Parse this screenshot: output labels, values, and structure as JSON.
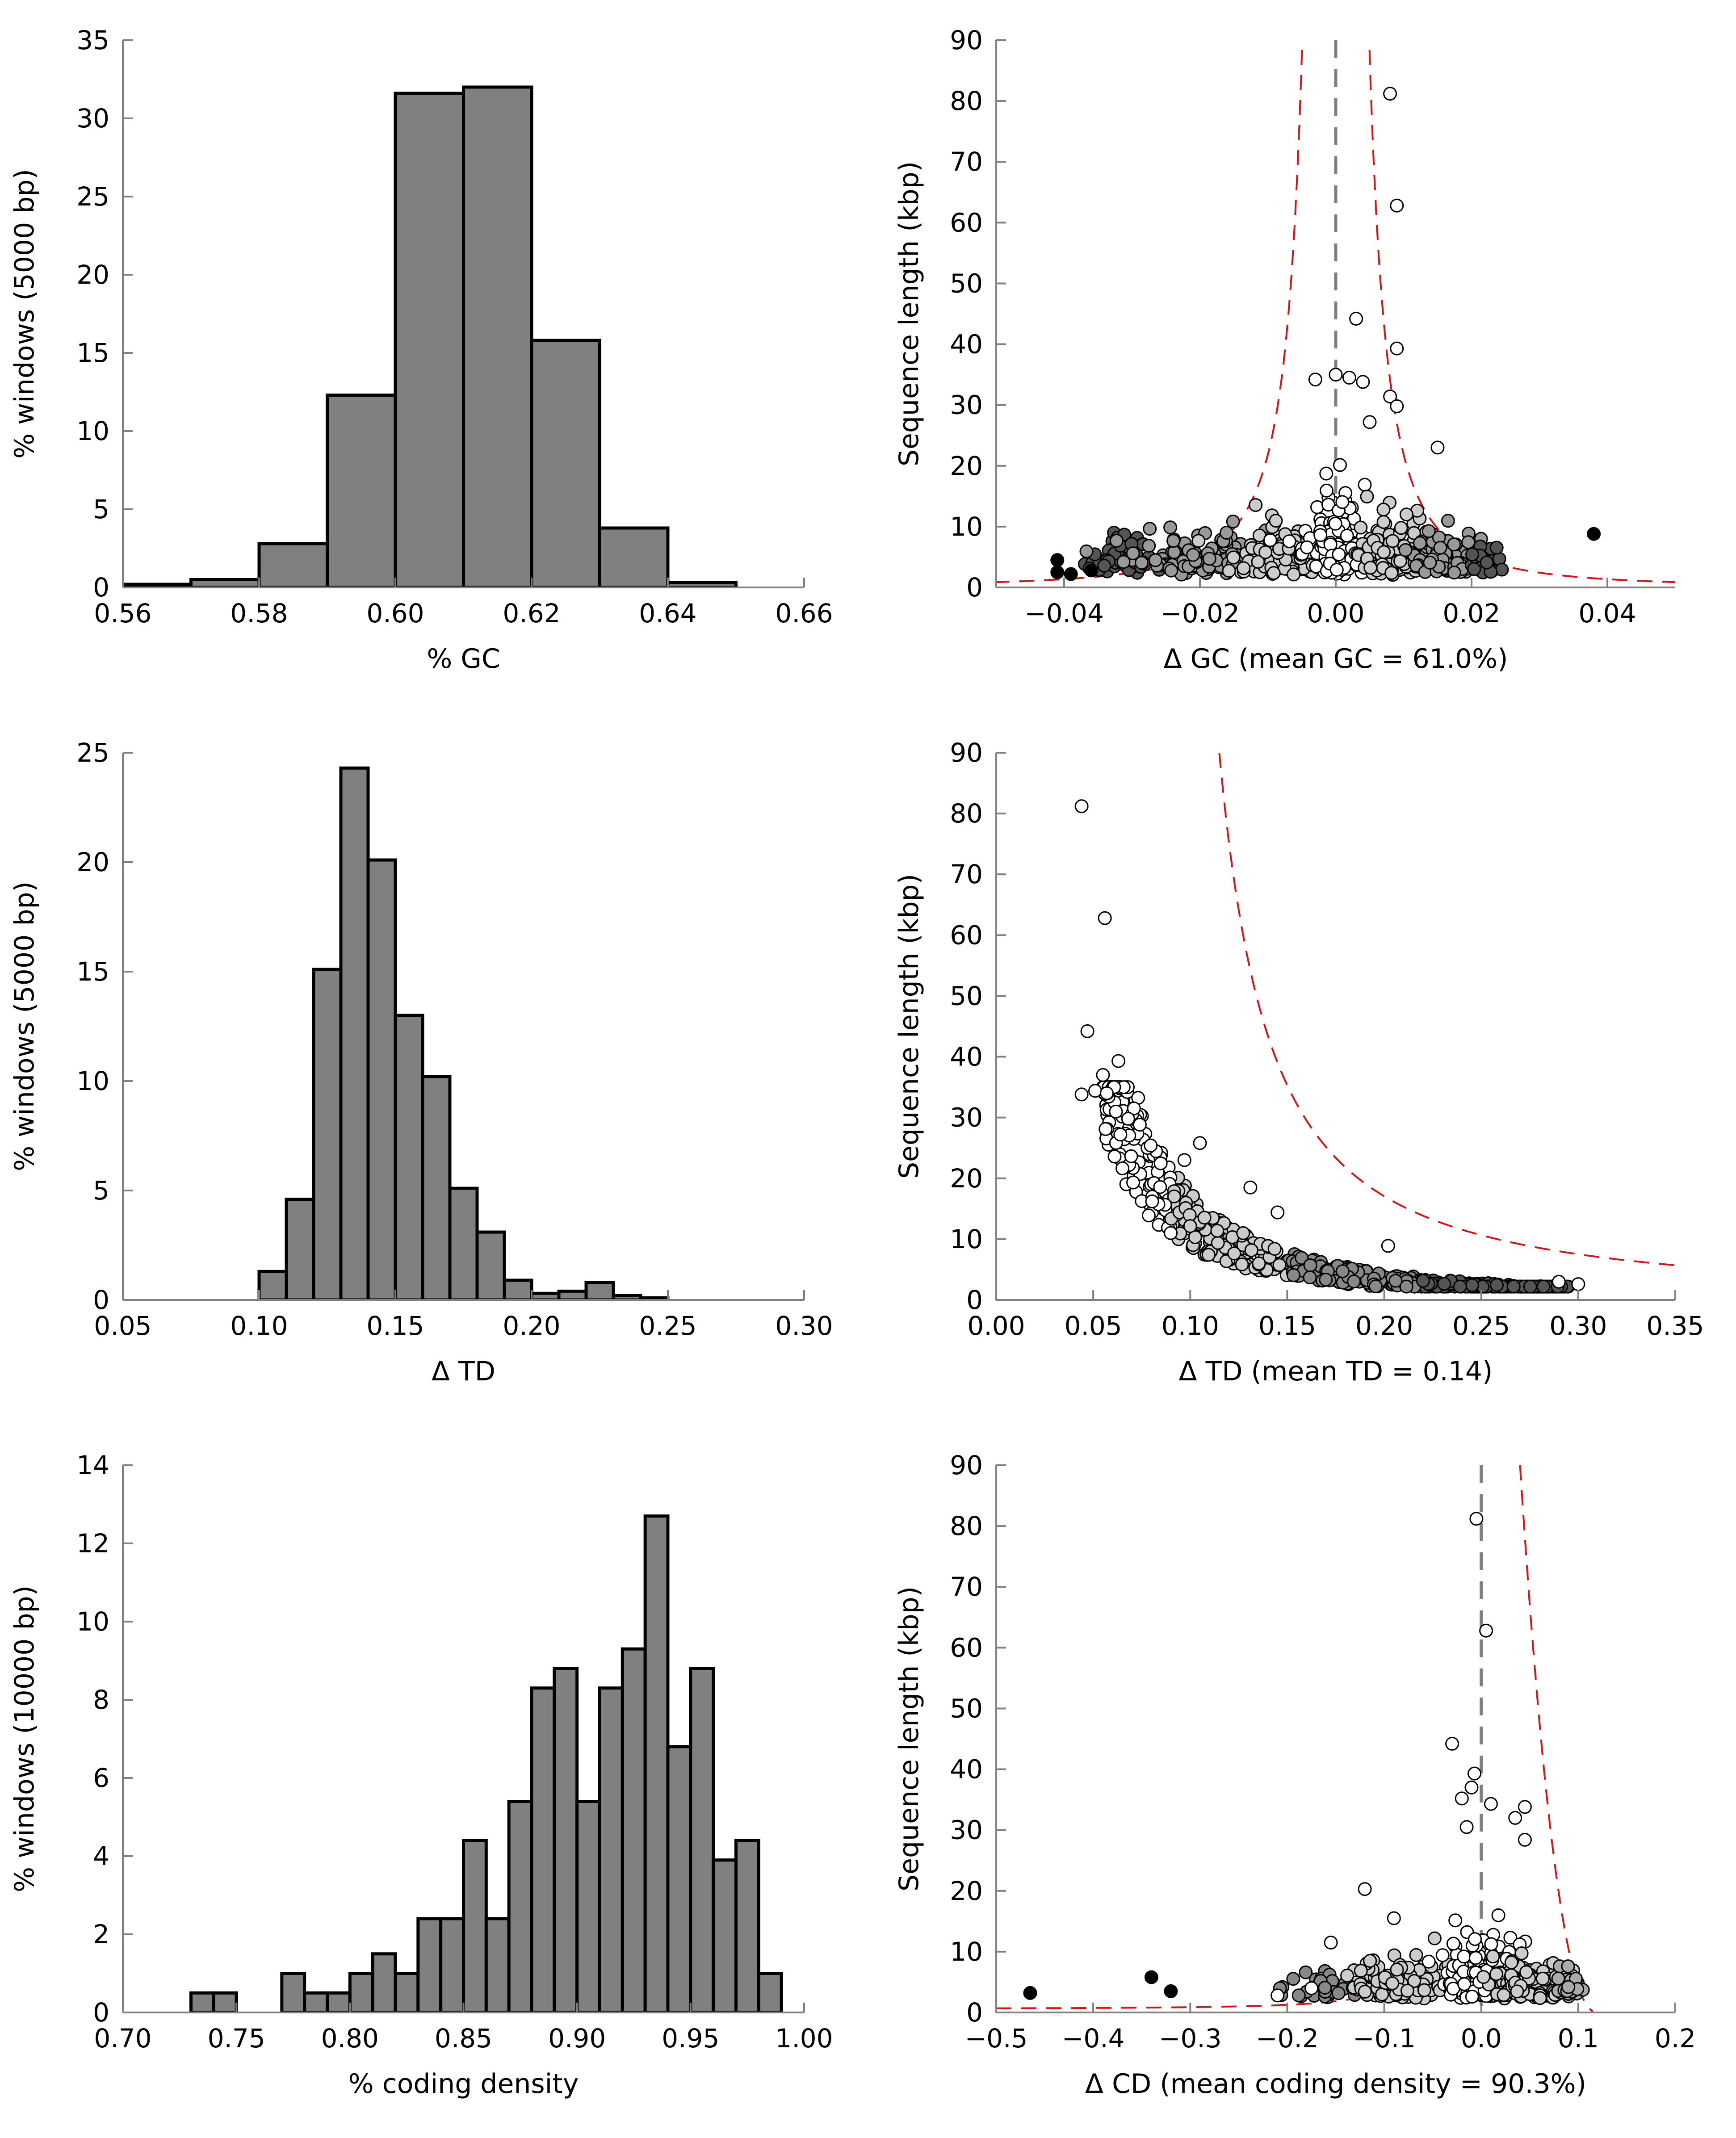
{
  "chart_data": [
    {
      "id": "gc-hist",
      "type": "bar",
      "xlabel": "% GC",
      "ylabel": "% windows (5000 bp)",
      "xlim": [
        0.56,
        0.66
      ],
      "ylim": [
        0,
        35
      ],
      "xticks": [
        "0.56",
        "0.58",
        "0.60",
        "0.62",
        "0.64",
        "0.66"
      ],
      "yticks": [
        "0",
        "5",
        "10",
        "15",
        "20",
        "25",
        "30",
        "35"
      ],
      "bin_edges": [
        0.56,
        0.57,
        0.58,
        0.59,
        0.6,
        0.61,
        0.62,
        0.63,
        0.64,
        0.65
      ],
      "values": [
        0.2,
        0.5,
        2.8,
        12.3,
        31.6,
        32.0,
        15.8,
        3.8,
        0.3
      ],
      "bar_color": "#808080"
    },
    {
      "id": "gc-scatter",
      "type": "scatter",
      "xlabel": "Δ GC (mean GC = 61.0%)",
      "ylabel": "Sequence length (kbp)",
      "xlim": [
        -0.05,
        0.05
      ],
      "ylim": [
        0,
        90
      ],
      "xticks": [
        "−0.04",
        "−0.02",
        "0.00",
        "0.02",
        "0.04"
      ],
      "yticks": [
        "0",
        "10",
        "20",
        "30",
        "40",
        "50",
        "60",
        "70",
        "80",
        "90"
      ],
      "center_line_x": 0.0,
      "outlier_points": [
        {
          "x": -0.041,
          "y": 4.5
        },
        {
          "x": -0.041,
          "y": 2.5
        },
        {
          "x": -0.039,
          "y": 2.2
        },
        {
          "x": -0.036,
          "y": 2.8
        },
        {
          "x": 0.038,
          "y": 8.8
        }
      ],
      "labeled_points": [
        {
          "x": 0.008,
          "y": 81.2
        },
        {
          "x": 0.009,
          "y": 62.8
        },
        {
          "x": 0.003,
          "y": 44.2
        },
        {
          "x": 0.009,
          "y": 39.3
        },
        {
          "x": 0.0,
          "y": 35.0
        },
        {
          "x": -0.003,
          "y": 34.2
        },
        {
          "x": 0.002,
          "y": 34.5
        },
        {
          "x": 0.004,
          "y": 33.8
        },
        {
          "x": 0.008,
          "y": 31.4
        },
        {
          "x": 0.009,
          "y": 29.8
        },
        {
          "x": 0.005,
          "y": 27.2
        },
        {
          "x": 0.015,
          "y": 23.0
        }
      ],
      "density_bands": [
        {
          "x": -0.032,
          "y": 5.0,
          "spread": 0.004,
          "ymax": 9.0,
          "n": 60,
          "color": "#555555"
        },
        {
          "x": -0.02,
          "y": 5.0,
          "spread": 0.008,
          "ymax": 13.0,
          "n": 130,
          "color": "#999999"
        },
        {
          "x": -0.008,
          "y": 6.0,
          "spread": 0.006,
          "ymax": 18.0,
          "n": 130,
          "color": "#cccccc"
        },
        {
          "x": 0.0,
          "y": 8.0,
          "spread": 0.004,
          "ymax": 25.0,
          "n": 150,
          "color": "#ffffff"
        },
        {
          "x": 0.008,
          "y": 6.0,
          "spread": 0.005,
          "ymax": 20.0,
          "n": 140,
          "color": "#cccccc"
        },
        {
          "x": 0.017,
          "y": 5.0,
          "spread": 0.005,
          "ymax": 12.0,
          "n": 110,
          "color": "#999999"
        },
        {
          "x": 0.022,
          "y": 4.0,
          "spread": 0.002,
          "ymax": 7.0,
          "n": 30,
          "color": "#555555"
        }
      ],
      "threshold_curves": {
        "type": "gc",
        "k": 0.000336,
        "x_range": [
          -0.05,
          0.05
        ],
        "color": "#dd1111"
      }
    },
    {
      "id": "td-hist",
      "type": "bar",
      "xlabel": "Δ TD",
      "ylabel": "% windows (5000 bp)",
      "xlim": [
        0.05,
        0.3
      ],
      "ylim": [
        0,
        25
      ],
      "xticks": [
        "0.05",
        "0.10",
        "0.15",
        "0.20",
        "0.25",
        "0.30"
      ],
      "yticks": [
        "0",
        "5",
        "10",
        "15",
        "20",
        "25"
      ],
      "bin_edges": [
        0.1,
        0.11,
        0.12,
        0.13,
        0.14,
        0.15,
        0.16,
        0.17,
        0.18,
        0.19,
        0.2,
        0.21,
        0.22,
        0.23,
        0.24,
        0.25
      ],
      "values": [
        1.3,
        4.6,
        15.1,
        24.3,
        20.1,
        13.0,
        10.2,
        5.1,
        3.1,
        0.9,
        0.3,
        0.4,
        0.8,
        0.2,
        0.1
      ],
      "bar_color": "#808080"
    },
    {
      "id": "td-scatter",
      "type": "scatter",
      "xlabel": "Δ TD (mean TD = 0.14)",
      "ylabel": "Sequence length (kbp)",
      "xlim": [
        0.0,
        0.35
      ],
      "ylim": [
        0,
        90
      ],
      "xticks": [
        "0.00",
        "0.05",
        "0.10",
        "0.15",
        "0.20",
        "0.25",
        "0.30",
        "0.35"
      ],
      "yticks": [
        "0",
        "10",
        "20",
        "30",
        "40",
        "50",
        "60",
        "70",
        "80",
        "90"
      ],
      "labeled_points": [
        {
          "x": 0.044,
          "y": 81.2
        },
        {
          "x": 0.056,
          "y": 62.8
        },
        {
          "x": 0.047,
          "y": 44.2
        },
        {
          "x": 0.063,
          "y": 39.3
        },
        {
          "x": 0.055,
          "y": 37.0
        },
        {
          "x": 0.044,
          "y": 33.8
        },
        {
          "x": 0.051,
          "y": 34.4
        },
        {
          "x": 0.057,
          "y": 34.0
        },
        {
          "x": 0.071,
          "y": 31.5
        },
        {
          "x": 0.068,
          "y": 29.8
        },
        {
          "x": 0.064,
          "y": 27.2
        },
        {
          "x": 0.105,
          "y": 25.8
        },
        {
          "x": 0.097,
          "y": 23.0
        },
        {
          "x": 0.131,
          "y": 18.5
        },
        {
          "x": 0.145,
          "y": 14.4
        },
        {
          "x": 0.202,
          "y": 8.9
        },
        {
          "x": 0.3,
          "y": 2.6
        },
        {
          "x": 0.29,
          "y": 3.0
        }
      ],
      "curve_band": {
        "k": 1.55,
        "x_range": [
          0.055,
          0.295
        ],
        "n": 620,
        "colors": [
          {
            "until": 0.09,
            "color": "#ffffff"
          },
          {
            "until": 0.15,
            "color": "#cccccc"
          },
          {
            "until": 0.22,
            "color": "#888888"
          },
          {
            "until": 0.4,
            "color": "#555555"
          }
        ]
      },
      "threshold_curves": {
        "type": "td",
        "k": 2.3,
        "x0": 0.08,
        "x_range": [
          0.115,
          0.35
        ],
        "color": "#dd1111"
      }
    },
    {
      "id": "cd-hist",
      "type": "bar",
      "xlabel": "% coding density",
      "ylabel": "% windows (10000 bp)",
      "xlim": [
        0.7,
        1.0
      ],
      "ylim": [
        0,
        14
      ],
      "xticks": [
        "0.70",
        "0.75",
        "0.80",
        "0.85",
        "0.90",
        "0.95",
        "1.00"
      ],
      "yticks": [
        "0",
        "2",
        "4",
        "6",
        "8",
        "10",
        "12",
        "14"
      ],
      "bin_edges": [
        0.73,
        0.74,
        0.75,
        0.76,
        0.77,
        0.78,
        0.79,
        0.8,
        0.81,
        0.82,
        0.83,
        0.84,
        0.85,
        0.86,
        0.87,
        0.88,
        0.89,
        0.9,
        0.91,
        0.92,
        0.93,
        0.94,
        0.95,
        0.96,
        0.97,
        0.98,
        0.99
      ],
      "values": [
        0.5,
        0.5,
        0,
        0,
        1.0,
        0.5,
        0.5,
        1.0,
        1.5,
        1.0,
        2.4,
        2.4,
        4.4,
        2.4,
        5.4,
        8.3,
        8.8,
        5.4,
        8.3,
        9.3,
        12.7,
        6.8,
        8.8,
        3.9,
        4.4,
        1.0
      ],
      "bar_color": "#808080"
    },
    {
      "id": "cd-scatter",
      "type": "scatter",
      "xlabel": "Δ CD (mean coding density = 90.3%)",
      "ylabel": "Sequence length (kbp)",
      "xlim": [
        -0.5,
        0.2
      ],
      "ylim": [
        0,
        90
      ],
      "xticks": [
        "−0.5",
        "−0.4",
        "−0.3",
        "−0.2",
        "−0.1",
        "0.0",
        "0.1",
        "0.2"
      ],
      "yticks": [
        "0",
        "10",
        "20",
        "30",
        "40",
        "50",
        "60",
        "70",
        "80",
        "90"
      ],
      "center_line_x": 0.0,
      "outlier_points": [
        {
          "x": -0.465,
          "y": 3.2
        },
        {
          "x": -0.34,
          "y": 5.8
        },
        {
          "x": -0.32,
          "y": 3.5
        }
      ],
      "labeled_points": [
        {
          "x": -0.005,
          "y": 81.2
        },
        {
          "x": 0.005,
          "y": 62.8
        },
        {
          "x": -0.03,
          "y": 44.2
        },
        {
          "x": -0.007,
          "y": 39.3
        },
        {
          "x": -0.01,
          "y": 37.0
        },
        {
          "x": -0.02,
          "y": 35.2
        },
        {
          "x": 0.01,
          "y": 34.3
        },
        {
          "x": 0.035,
          "y": 32.0
        },
        {
          "x": 0.045,
          "y": 33.8
        },
        {
          "x": -0.015,
          "y": 30.5
        },
        {
          "x": 0.045,
          "y": 28.4
        },
        {
          "x": -0.21,
          "y": 2.8
        },
        {
          "x": -0.175,
          "y": 4.0
        },
        {
          "x": -0.155,
          "y": 11.5
        },
        {
          "x": -0.12,
          "y": 20.3
        },
        {
          "x": -0.09,
          "y": 15.5
        }
      ],
      "density_bands": [
        {
          "x": -0.16,
          "y": 3.5,
          "spread": 0.03,
          "ymax": 8.0,
          "n": 40,
          "color": "#888888"
        },
        {
          "x": -0.08,
          "y": 5.0,
          "spread": 0.04,
          "ymax": 16.0,
          "n": 130,
          "color": "#cccccc"
        },
        {
          "x": 0.0,
          "y": 7.0,
          "spread": 0.03,
          "ymax": 26.0,
          "n": 200,
          "color": "#ffffff"
        },
        {
          "x": 0.05,
          "y": 5.0,
          "spread": 0.03,
          "ymax": 18.0,
          "n": 160,
          "color": "#cccccc"
        },
        {
          "x": 0.09,
          "y": 4.0,
          "spread": 0.01,
          "ymax": 8.0,
          "n": 40,
          "color": "#aaaaaa"
        }
      ],
      "threshold_curves": {
        "type": "cd",
        "x_range": [
          -0.5,
          0.12
        ],
        "color": "#dd1111"
      }
    }
  ]
}
